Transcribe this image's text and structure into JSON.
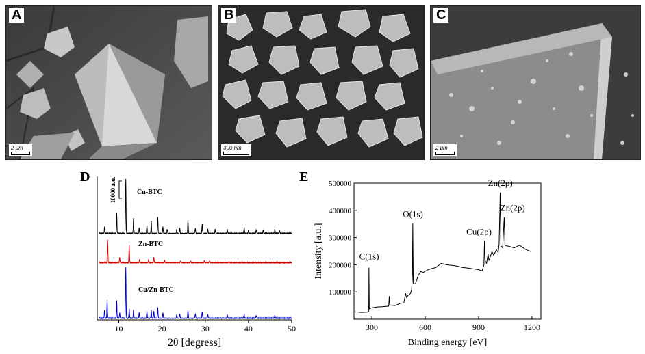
{
  "panels": {
    "A": {
      "letter": "A",
      "scale_label": "2 μm"
    },
    "B": {
      "letter": "B",
      "scale_label": "300 nm"
    },
    "C": {
      "letter": "C",
      "scale_label": "2 μm"
    },
    "D": {
      "letter": "D"
    },
    "E": {
      "letter": "E"
    }
  },
  "chart_data": [
    {
      "type": "line",
      "panel": "D",
      "xlabel": "2θ [degress]",
      "ylabel": "",
      "xlim": [
        5,
        50
      ],
      "xticks": [
        10,
        20,
        30,
        40,
        50
      ],
      "scale_label": "10000 a.u.",
      "series": [
        {
          "name": "Cu-BTC",
          "color": "#000000",
          "baseline": 342,
          "peaks": [
            [
              6.7,
              10
            ],
            [
              9.5,
              30
            ],
            [
              11.6,
              80
            ],
            [
              13.4,
              22
            ],
            [
              14.7,
              8
            ],
            [
              16.5,
              12
            ],
            [
              17.5,
              18
            ],
            [
              19.0,
              24
            ],
            [
              20.2,
              10
            ],
            [
              21.2,
              6
            ],
            [
              23.4,
              6
            ],
            [
              24.1,
              8
            ],
            [
              26.0,
              20
            ],
            [
              27.7,
              8
            ],
            [
              29.3,
              14
            ],
            [
              30.6,
              6
            ],
            [
              32.3,
              6
            ],
            [
              35.1,
              6
            ],
            [
              39.0,
              9
            ],
            [
              40.0,
              5
            ],
            [
              41.8,
              6
            ],
            [
              43.4,
              5
            ],
            [
              46.1,
              6
            ],
            [
              47.2,
              4
            ]
          ]
        },
        {
          "name": "Zn-BTC",
          "color": "#cc0000",
          "baseline": 385,
          "peaks": [
            [
              7.4,
              34
            ],
            [
              10.2,
              8
            ],
            [
              12.4,
              26
            ],
            [
              14.8,
              5
            ],
            [
              16.9,
              5
            ],
            [
              18.1,
              8
            ],
            [
              20.6,
              3
            ],
            [
              24.3,
              3
            ],
            [
              26.6,
              3
            ],
            [
              29.8,
              3
            ],
            [
              31.0,
              3
            ],
            [
              35.5,
              2
            ]
          ]
        },
        {
          "name": "Cu/Zn-BTC",
          "color": "#0000cc",
          "baseline": 466,
          "peaks": [
            [
              6.7,
              12
            ],
            [
              7.3,
              26
            ],
            [
              9.5,
              26
            ],
            [
              10.2,
              8
            ],
            [
              11.6,
              75
            ],
            [
              12.4,
              14
            ],
            [
              13.4,
              12
            ],
            [
              14.7,
              8
            ],
            [
              16.5,
              10
            ],
            [
              17.5,
              12
            ],
            [
              18.1,
              10
            ],
            [
              19.0,
              16
            ],
            [
              20.2,
              8
            ],
            [
              23.4,
              5
            ],
            [
              24.1,
              6
            ],
            [
              26.0,
              12
            ],
            [
              27.7,
              6
            ],
            [
              29.3,
              10
            ],
            [
              30.6,
              5
            ],
            [
              35.1,
              5
            ],
            [
              39.0,
              6
            ],
            [
              41.8,
              4
            ],
            [
              46.1,
              4
            ]
          ]
        }
      ]
    },
    {
      "type": "line",
      "panel": "E",
      "xlabel": "Binding energy [eV]",
      "ylabel": "Intensity [a.u.]",
      "xlim": [
        200,
        1250
      ],
      "ylim": [
        0,
        500000
      ],
      "xticks": [
        300,
        600,
        900,
        1200
      ],
      "yticks": [
        100000,
        200000,
        300000,
        400000,
        500000
      ],
      "annotations": [
        {
          "text": "C(1s)",
          "x": 285,
          "y": 200000
        },
        {
          "text": "O(1s)",
          "x": 531,
          "y": 355000
        },
        {
          "text": "Cu(2p)",
          "x": 933,
          "y": 290000
        },
        {
          "text": "Zn(2p)",
          "x": 1022,
          "y": 470000
        },
        {
          "text": "Zn(2p)",
          "x": 1045,
          "y": 378000
        }
      ],
      "points": [
        [
          205,
          27000
        ],
        [
          240,
          25000
        ],
        [
          275,
          26000
        ],
        [
          283,
          30000
        ],
        [
          284,
          190000
        ],
        [
          286,
          38000
        ],
        [
          300,
          42000
        ],
        [
          330,
          45000
        ],
        [
          360,
          46000
        ],
        [
          395,
          48000
        ],
        [
          398,
          85000
        ],
        [
          401,
          52000
        ],
        [
          430,
          50000
        ],
        [
          460,
          58000
        ],
        [
          480,
          60000
        ],
        [
          490,
          95000
        ],
        [
          495,
          80000
        ],
        [
          505,
          88000
        ],
        [
          518,
          95000
        ],
        [
          524,
          110000
        ],
        [
          528,
          160000
        ],
        [
          530,
          352000
        ],
        [
          533,
          130000
        ],
        [
          545,
          130000
        ],
        [
          560,
          160000
        ],
        [
          575,
          175000
        ],
        [
          590,
          172000
        ],
        [
          610,
          180000
        ],
        [
          630,
          185000
        ],
        [
          660,
          190000
        ],
        [
          690,
          205000
        ],
        [
          720,
          200000
        ],
        [
          750,
          198000
        ],
        [
          780,
          195000
        ],
        [
          810,
          190000
        ],
        [
          840,
          188000
        ],
        [
          870,
          185000
        ],
        [
          900,
          182000
        ],
        [
          920,
          178000
        ],
        [
          930,
          200000
        ],
        [
          933,
          290000
        ],
        [
          936,
          215000
        ],
        [
          945,
          205000
        ],
        [
          953,
          240000
        ],
        [
          958,
          215000
        ],
        [
          975,
          248000
        ],
        [
          985,
          235000
        ],
        [
          1000,
          255000
        ],
        [
          1010,
          245000
        ],
        [
          1015,
          275000
        ],
        [
          1021,
          465000
        ],
        [
          1025,
          270000
        ],
        [
          1035,
          262000
        ],
        [
          1044,
          375000
        ],
        [
          1048,
          270000
        ],
        [
          1070,
          268000
        ],
        [
          1100,
          262000
        ],
        [
          1130,
          272000
        ],
        [
          1160,
          258000
        ],
        [
          1180,
          252000
        ],
        [
          1196,
          248000
        ]
      ]
    }
  ]
}
